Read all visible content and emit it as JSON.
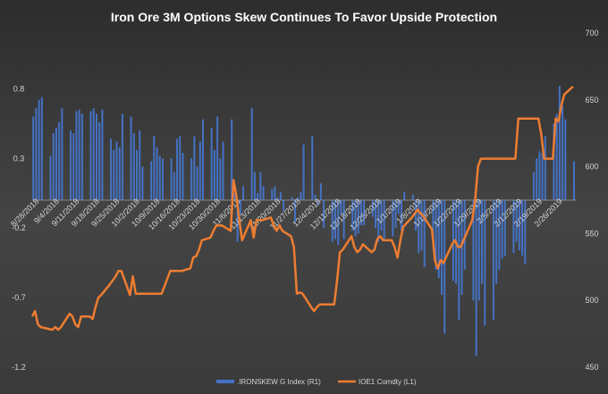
{
  "chart_data": {
    "type": "bar+line",
    "title": "Iron Ore 3M Options Skew Continues To Favor Upside Protection",
    "legend_position": "bottom",
    "grid": false,
    "colors": {
      "bars": "#4472c4",
      "line": "#ed7d31",
      "text": "#d4d4d4",
      "title": "#ffffff"
    },
    "left_axis": {
      "label": "",
      "ylim": [
        -1.2,
        1.2
      ],
      "ticks": [
        -1.2,
        -0.7,
        -0.2,
        0.3,
        0.8
      ],
      "tick_labels": [
        "-1.2",
        "-0.7",
        "-0.2",
        "0.3",
        "0.8"
      ]
    },
    "right_axis": {
      "label": "",
      "ylim": [
        450,
        700
      ],
      "ticks": [
        450,
        500,
        550,
        600,
        650,
        700
      ],
      "tick_labels": [
        "450",
        "500",
        "550",
        "600",
        "650",
        "700"
      ]
    },
    "x_axis": {
      "start": "2018-08-28",
      "end": "2019-03-04",
      "tick_labels": [
        "8/28/2018",
        "9/4/2018",
        "9/11/2018",
        "9/18/2018",
        "9/25/2018",
        "10/2/2018",
        "10/9/2018",
        "10/16/2018",
        "10/23/2018",
        "10/30/2018",
        "11/6/2018",
        "11/13/2018",
        "11/20/2018",
        "11/27/2018",
        "12/4/2018",
        "12/11/2018",
        "12/18/2018",
        "12/25/2018",
        "1/1/2019",
        "1/8/2019",
        "1/15/2019",
        "1/22/2019",
        "1/29/2019",
        "2/5/2019",
        "2/12/2019",
        "2/19/2019",
        "2/26/2019"
      ]
    },
    "series": [
      {
        "name": ".IRONSKEW G Index  (R1)",
        "type": "bar",
        "axis": "left",
        "x": [
          "2018-08-28",
          "2018-08-29",
          "2018-08-30",
          "2018-08-31",
          "2018-09-03",
          "2018-09-04",
          "2018-09-05",
          "2018-09-06",
          "2018-09-07",
          "2018-09-10",
          "2018-09-11",
          "2018-09-12",
          "2018-09-13",
          "2018-09-14",
          "2018-09-17",
          "2018-09-18",
          "2018-09-19",
          "2018-09-20",
          "2018-09-21",
          "2018-09-24",
          "2018-09-25",
          "2018-09-26",
          "2018-09-27",
          "2018-09-28",
          "2018-10-01",
          "2018-10-02",
          "2018-10-03",
          "2018-10-04",
          "2018-10-05",
          "2018-10-08",
          "2018-10-09",
          "2018-10-10",
          "2018-10-11",
          "2018-10-12",
          "2018-10-15",
          "2018-10-16",
          "2018-10-17",
          "2018-10-18",
          "2018-10-19",
          "2018-10-22",
          "2018-10-23",
          "2018-10-24",
          "2018-10-25",
          "2018-10-26",
          "2018-10-29",
          "2018-10-30",
          "2018-10-31",
          "2018-11-01",
          "2018-11-02",
          "2018-11-05",
          "2018-11-06",
          "2018-11-07",
          "2018-11-08",
          "2018-11-09",
          "2018-11-12",
          "2018-11-13",
          "2018-11-14",
          "2018-11-15",
          "2018-11-16",
          "2018-11-19",
          "2018-11-20",
          "2018-11-21",
          "2018-11-22",
          "2018-11-23",
          "2018-11-26",
          "2018-11-27",
          "2018-11-28",
          "2018-11-29",
          "2018-11-30",
          "2018-12-03",
          "2018-12-04",
          "2018-12-05",
          "2018-12-06",
          "2018-12-07",
          "2018-12-10",
          "2018-12-11",
          "2018-12-12",
          "2018-12-13",
          "2018-12-14",
          "2018-12-17",
          "2018-12-18",
          "2018-12-19",
          "2018-12-20",
          "2018-12-21",
          "2018-12-24",
          "2018-12-25",
          "2018-12-26",
          "2018-12-27",
          "2018-12-28",
          "2018-12-31",
          "2019-01-01",
          "2019-01-02",
          "2019-01-03",
          "2019-01-04",
          "2019-01-07",
          "2019-01-08",
          "2019-01-09",
          "2019-01-10",
          "2019-01-11",
          "2019-01-14",
          "2019-01-15",
          "2019-01-16",
          "2019-01-17",
          "2019-01-18",
          "2019-01-21",
          "2019-01-22",
          "2019-01-23",
          "2019-01-24",
          "2019-01-25",
          "2019-01-28",
          "2019-01-29",
          "2019-01-30",
          "2019-01-31",
          "2019-02-01",
          "2019-02-04",
          "2019-02-05",
          "2019-02-06",
          "2019-02-07",
          "2019-02-08",
          "2019-02-11",
          "2019-02-12",
          "2019-02-13",
          "2019-02-14",
          "2019-02-15",
          "2019-02-18",
          "2019-02-19",
          "2019-02-20",
          "2019-02-21",
          "2019-02-22",
          "2019-02-25",
          "2019-02-26",
          "2019-02-27",
          "2019-02-28",
          "2019-03-01",
          "2019-03-04"
        ],
        "values": [
          0.6,
          0.66,
          0.72,
          0.74,
          0.32,
          0.48,
          0.52,
          0.56,
          0.66,
          0.5,
          0.48,
          0.64,
          0.65,
          0.62,
          0.64,
          0.66,
          0.62,
          0.56,
          0.65,
          0.44,
          0.36,
          0.42,
          0.38,
          0.62,
          0.6,
          0.48,
          0.36,
          0.5,
          0.24,
          0.28,
          0.46,
          0.38,
          0.32,
          0.3,
          0.3,
          0.2,
          0.44,
          0.46,
          0.34,
          0.3,
          0.46,
          0.24,
          0.42,
          0.58,
          0.52,
          0.36,
          0.6,
          0.3,
          0.42,
          0.58,
          0.05,
          -0.3,
          -0.1,
          0.1,
          0.66,
          0.2,
          0.05,
          0.2,
          0.1,
          0.08,
          0.1,
          0.02,
          0.06,
          -0.08,
          0.02,
          -0.16,
          0.02,
          0.06,
          0.4,
          0.46,
          0.04,
          -0.04,
          0.12,
          -0.2,
          -0.3,
          -0.28,
          -0.32,
          -0.1,
          -0.28,
          -0.22,
          -0.26,
          -0.24,
          -0.18,
          -0.18,
          -0.12,
          -0.2,
          -0.3,
          -0.22,
          -0.28,
          -0.26,
          -0.2,
          -0.1,
          -0.22,
          0.06,
          0.04,
          -0.22,
          -0.38,
          -0.36,
          -0.48,
          -0.28,
          -0.5,
          -0.56,
          -0.68,
          -0.96,
          -0.58,
          -0.6,
          -0.86,
          -0.68,
          -0.5,
          -0.72,
          -1.12,
          -0.72,
          -0.6,
          -0.9,
          -0.86,
          -0.6,
          -0.5,
          -0.42,
          -0.4,
          -0.38,
          -0.3,
          -0.36,
          -0.4,
          -0.46,
          0.2,
          0.3,
          0.35,
          0.34,
          0.46,
          0.55,
          0.62,
          0.82,
          0.68,
          0.58,
          0.28
        ]
      },
      {
        "name": "IOE1 Comdty  (L1)",
        "type": "line",
        "axis": "right",
        "points": [
          [
            "2018-08-28",
            488
          ],
          [
            "2018-08-29",
            492
          ],
          [
            "2018-08-30",
            482
          ],
          [
            "2018-08-31",
            480
          ],
          [
            "2018-09-04",
            478
          ],
          [
            "2018-09-05",
            480
          ],
          [
            "2018-09-06",
            478
          ],
          [
            "2018-09-07",
            480
          ],
          [
            "2018-09-10",
            490
          ],
          [
            "2018-09-11",
            488
          ],
          [
            "2018-09-12",
            482
          ],
          [
            "2018-09-13",
            480
          ],
          [
            "2018-09-14",
            488
          ],
          [
            "2018-09-17",
            488
          ],
          [
            "2018-09-18",
            486
          ],
          [
            "2018-09-19",
            495
          ],
          [
            "2018-09-20",
            502
          ],
          [
            "2018-09-21",
            504
          ],
          [
            "2018-09-24",
            512
          ],
          [
            "2018-09-25",
            515
          ],
          [
            "2018-09-26",
            518
          ],
          [
            "2018-09-27",
            522
          ],
          [
            "2018-09-28",
            522
          ],
          [
            "2018-10-01",
            504
          ],
          [
            "2018-10-02",
            518
          ],
          [
            "2018-10-03",
            505
          ],
          [
            "2018-10-04",
            505
          ],
          [
            "2018-10-05",
            505
          ],
          [
            "2018-10-08",
            505
          ],
          [
            "2018-10-09",
            505
          ],
          [
            "2018-10-10",
            505
          ],
          [
            "2018-10-11",
            505
          ],
          [
            "2018-10-12",
            505
          ],
          [
            "2018-10-15",
            522
          ],
          [
            "2018-10-16",
            522
          ],
          [
            "2018-10-17",
            522
          ],
          [
            "2018-10-18",
            522
          ],
          [
            "2018-10-19",
            522
          ],
          [
            "2018-10-22",
            524
          ],
          [
            "2018-10-23",
            532
          ],
          [
            "2018-10-24",
            533
          ],
          [
            "2018-10-25",
            538
          ],
          [
            "2018-10-26",
            545
          ],
          [
            "2018-10-29",
            547
          ],
          [
            "2018-10-30",
            552
          ],
          [
            "2018-10-31",
            556
          ],
          [
            "2018-11-01",
            556
          ],
          [
            "2018-11-02",
            556
          ],
          [
            "2018-11-05",
            552
          ],
          [
            "2018-11-06",
            590
          ],
          [
            "2018-11-07",
            578
          ],
          [
            "2018-11-08",
            560
          ],
          [
            "2018-11-09",
            545
          ],
          [
            "2018-11-12",
            560
          ],
          [
            "2018-11-13",
            547
          ],
          [
            "2018-11-14",
            560
          ],
          [
            "2018-11-15",
            560
          ],
          [
            "2018-11-16",
            560
          ],
          [
            "2018-11-19",
            562
          ],
          [
            "2018-11-20",
            556
          ],
          [
            "2018-11-21",
            552
          ],
          [
            "2018-11-22",
            556
          ],
          [
            "2018-11-23",
            552
          ],
          [
            "2018-11-26",
            548
          ],
          [
            "2018-11-27",
            540
          ],
          [
            "2018-11-28",
            505
          ],
          [
            "2018-11-29",
            506
          ],
          [
            "2018-11-30",
            505
          ],
          [
            "2018-12-03",
            495
          ],
          [
            "2018-12-04",
            492
          ],
          [
            "2018-12-05",
            495
          ],
          [
            "2018-12-06",
            497
          ],
          [
            "2018-12-07",
            497
          ],
          [
            "2018-12-10",
            497
          ],
          [
            "2018-12-11",
            497
          ],
          [
            "2018-12-12",
            515
          ],
          [
            "2018-12-13",
            536
          ],
          [
            "2018-12-14",
            538
          ],
          [
            "2018-12-17",
            548
          ],
          [
            "2018-12-18",
            540
          ],
          [
            "2018-12-19",
            536
          ],
          [
            "2018-12-20",
            538
          ],
          [
            "2018-12-21",
            542
          ],
          [
            "2018-12-24",
            536
          ],
          [
            "2018-12-25",
            538
          ],
          [
            "2018-12-26",
            546
          ],
          [
            "2018-12-27",
            548
          ],
          [
            "2018-12-28",
            545
          ],
          [
            "2018-12-31",
            545
          ],
          [
            "2019-01-01",
            540
          ],
          [
            "2019-01-02",
            532
          ],
          [
            "2019-01-03",
            545
          ],
          [
            "2019-01-04",
            555
          ],
          [
            "2019-01-07",
            562
          ],
          [
            "2019-01-08",
            565
          ],
          [
            "2019-01-09",
            568
          ],
          [
            "2019-01-10",
            565
          ],
          [
            "2019-01-11",
            563
          ],
          [
            "2019-01-14",
            553
          ],
          [
            "2019-01-15",
            530
          ],
          [
            "2019-01-16",
            524
          ],
          [
            "2019-01-17",
            530
          ],
          [
            "2019-01-18",
            528
          ],
          [
            "2019-01-21",
            542
          ],
          [
            "2019-01-22",
            545
          ],
          [
            "2019-01-23",
            540
          ],
          [
            "2019-01-24",
            540
          ],
          [
            "2019-01-25",
            545
          ],
          [
            "2019-01-28",
            560
          ],
          [
            "2019-01-29",
            575
          ],
          [
            "2019-01-30",
            600
          ],
          [
            "2019-01-31",
            606
          ],
          [
            "2019-02-01",
            606
          ],
          [
            "2019-02-04",
            606
          ],
          [
            "2019-02-05",
            606
          ],
          [
            "2019-02-06",
            606
          ],
          [
            "2019-02-07",
            606
          ],
          [
            "2019-02-08",
            606
          ],
          [
            "2019-02-11",
            606
          ],
          [
            "2019-02-12",
            606
          ],
          [
            "2019-02-13",
            636
          ],
          [
            "2019-02-14",
            636
          ],
          [
            "2019-02-15",
            636
          ],
          [
            "2019-02-18",
            636
          ],
          [
            "2019-02-19",
            636
          ],
          [
            "2019-02-20",
            636
          ],
          [
            "2019-02-21",
            624
          ],
          [
            "2019-02-22",
            606
          ],
          [
            "2019-02-25",
            606
          ],
          [
            "2019-02-26",
            636
          ],
          [
            "2019-02-27",
            634
          ],
          [
            "2019-02-28",
            646
          ],
          [
            "2019-03-01",
            654
          ],
          [
            "2019-03-04",
            660
          ]
        ]
      }
    ]
  }
}
